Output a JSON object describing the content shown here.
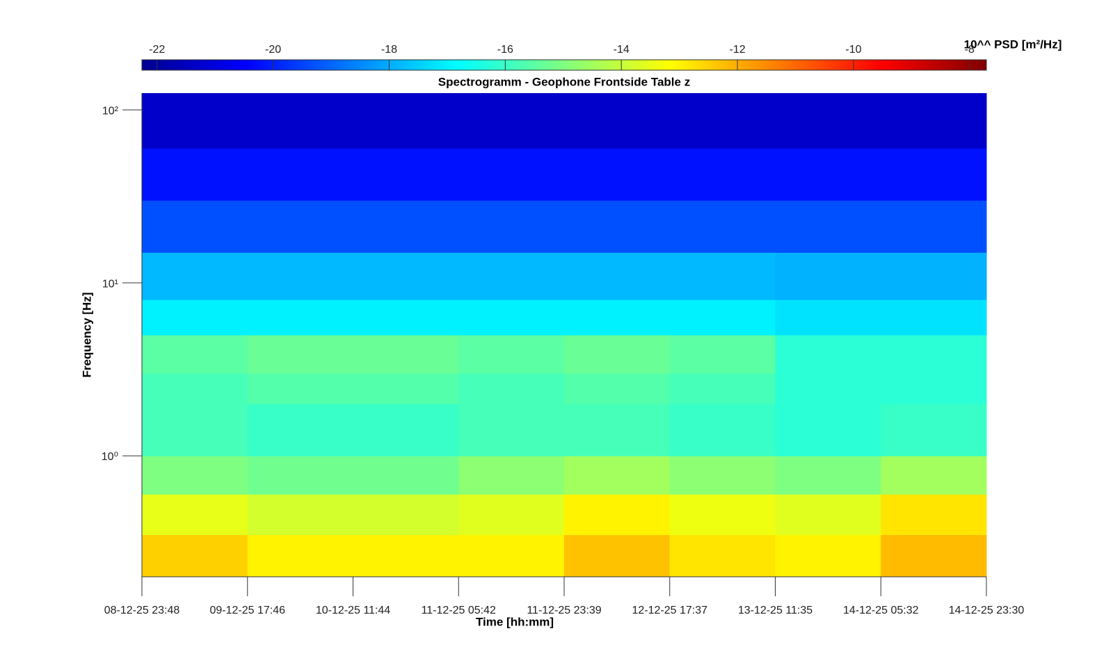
{
  "chart_data": {
    "type": "spectrogram",
    "title": "Spectrogramm - Geophone Frontside Table z",
    "xlabel": "Time [hh:mm]",
    "ylabel": "Frequency [Hz]",
    "xticks": [
      "08-12-25 23:48",
      "09-12-25 17:46",
      "10-12-25 11:44",
      "11-12-25 05:42",
      "11-12-25 23:39",
      "12-12-25 17:37",
      "13-12-25 11:35",
      "14-12-25 05:32",
      "14-12-25 23:30"
    ],
    "ylim": [
      0.2,
      125
    ],
    "log_y": true,
    "yticks": [
      {
        "value": 1,
        "label": "10⁰"
      },
      {
        "value": 10,
        "label": "10¹"
      },
      {
        "value": 100,
        "label": "10²"
      }
    ],
    "y_edges": [
      0.2,
      0.35,
      0.6,
      1,
      2,
      3,
      5,
      8,
      15,
      30,
      60,
      125
    ],
    "z": [
      [
        -12.5,
        -13,
        -13,
        -13,
        -12.3,
        -12.8,
        -13,
        -12.2
      ],
      [
        -13.5,
        -13.8,
        -13.8,
        -13.6,
        -13,
        -13.4,
        -13.6,
        -12.8
      ],
      [
        -15,
        -15.2,
        -15.2,
        -14.8,
        -14.5,
        -14.8,
        -15,
        -14.5
      ],
      [
        -15.8,
        -16,
        -16,
        -15.8,
        -15.8,
        -16,
        -16.2,
        -16
      ],
      [
        -15.8,
        -15.6,
        -15.6,
        -15.8,
        -15.6,
        -15.8,
        -16.2,
        -16.2
      ],
      [
        -15.5,
        -15.3,
        -15.3,
        -15.5,
        -15.3,
        -15.5,
        -16.2,
        -16.2
      ],
      [
        -17,
        -17,
        -17,
        -17,
        -17,
        -17,
        -17.2,
        -17.2
      ],
      [
        -17.8,
        -17.8,
        -17.8,
        -17.8,
        -17.8,
        -17.8,
        -17.9,
        -17.9
      ],
      [
        -19.3,
        -19.3,
        -19.3,
        -19.3,
        -19.3,
        -19.3,
        -19.3,
        -19.3
      ],
      [
        -20.2,
        -20.2,
        -20.2,
        -20.2,
        -20.2,
        -20.2,
        -20.2,
        -20.2
      ],
      [
        -21.2,
        -21.2,
        -21.2,
        -21.2,
        -21.2,
        -21.2,
        -21.2,
        -21.2
      ]
    ],
    "colormap": "jet",
    "colorbar": {
      "label": "10^^ PSD [m²/Hz]",
      "clim": [
        -22.26,
        -7.71
      ],
      "ticks": [
        -22,
        -20,
        -18,
        -16,
        -14,
        -12,
        -10,
        -8
      ]
    }
  }
}
